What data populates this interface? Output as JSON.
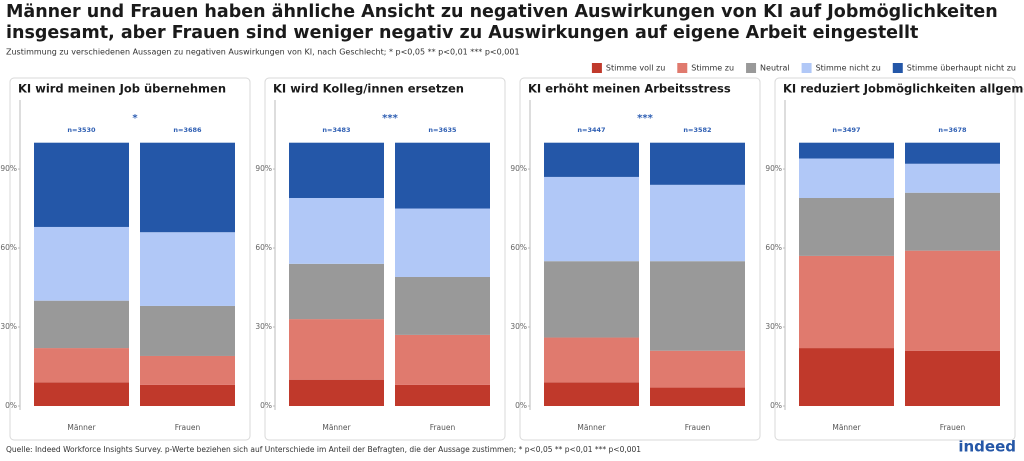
{
  "header": {
    "title": [
      "Männer und Frauen haben ähnliche Ansicht zu negativen Auswirkungen von KI auf Jobmöglichkeiten",
      "insgesamt, aber Frauen sind weniger negativ zu Auswirkungen auf eigene Arbeit eingestellt"
    ],
    "subtitle": "Zustimmung zu verschiedenen Aussagen zu negativen Auswirkungen von KI, nach Geschlecht; * p<0,05  ** p<0,01  *** p<0,001"
  },
  "chart_data": {
    "type": "bar",
    "stacked": true,
    "categories": [
      "Männer",
      "Frauen"
    ],
    "ylim": [
      0,
      100
    ],
    "yticks": [
      {
        "value": 0,
        "label": "0%"
      },
      {
        "value": 30,
        "label": "30%"
      },
      {
        "value": 60,
        "label": "60%"
      },
      {
        "value": 90,
        "label": "90%"
      }
    ],
    "legend": [
      {
        "name": "Stimme voll zu",
        "color": "#c0392b"
      },
      {
        "name": "Stimme zu",
        "color": "#e07a6e"
      },
      {
        "name": "Neutral",
        "color": "#999999"
      },
      {
        "name": "Stimme nicht zu",
        "color": "#b1c8f7"
      },
      {
        "name": "Stimme überhaupt nicht zu",
        "color": "#2457a8"
      }
    ],
    "panels": [
      {
        "title": "KI wird meinen Job übernehmen",
        "significance": "*",
        "n_labels": [
          "n=3530",
          "n=3686"
        ],
        "series": [
          {
            "values": [
              9,
              8
            ]
          },
          {
            "values": [
              13,
              11
            ]
          },
          {
            "values": [
              18,
              19
            ]
          },
          {
            "values": [
              28,
              28
            ]
          },
          {
            "values": [
              32,
              34
            ]
          }
        ]
      },
      {
        "title": "KI wird Kolleg/innen ersetzen",
        "significance": "***",
        "n_labels": [
          "n=3483",
          "n=3635"
        ],
        "series": [
          {
            "values": [
              10,
              8
            ]
          },
          {
            "values": [
              23,
              19
            ]
          },
          {
            "values": [
              21,
              22
            ]
          },
          {
            "values": [
              25,
              26
            ]
          },
          {
            "values": [
              21,
              25
            ]
          }
        ]
      },
      {
        "title": "KI erhöht meinen Arbeitsstress",
        "significance": "***",
        "n_labels": [
          "n=3447",
          "n=3582"
        ],
        "series": [
          {
            "values": [
              9,
              7
            ]
          },
          {
            "values": [
              17,
              14
            ]
          },
          {
            "values": [
              29,
              34
            ]
          },
          {
            "values": [
              32,
              29
            ]
          },
          {
            "values": [
              13,
              16
            ]
          }
        ]
      },
      {
        "title": "KI reduziert Jobmöglichkeiten allgemein",
        "n_labels": [
          "n=3497",
          "n=3678"
        ],
        "series": [
          {
            "values": [
              22,
              21
            ]
          },
          {
            "values": [
              35,
              38
            ]
          },
          {
            "values": [
              22,
              22
            ]
          },
          {
            "values": [
              15,
              11
            ]
          },
          {
            "values": [
              6,
              8
            ]
          }
        ]
      }
    ]
  },
  "footer": {
    "source": "Quelle: Indeed Workforce Insights Survey. p-Werte beziehen sich auf Unterschiede im Anteil der Befragten, die der Aussage zustimmen; * p<0,05  ** p<0,01  *** p<0,001",
    "logo": "indeed"
  }
}
